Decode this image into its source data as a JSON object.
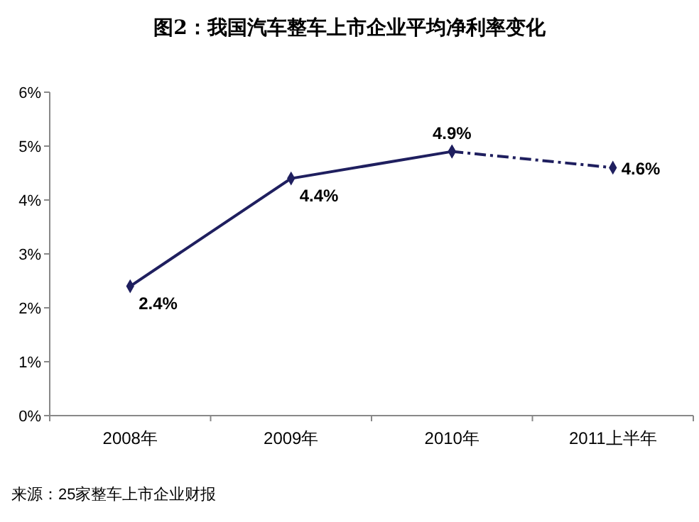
{
  "chart_data": {
    "type": "line",
    "title": "图2：我国汽车整车上市企业平均净利率变化",
    "categories": [
      "2008年",
      "2009年",
      "2010年",
      "2011上半年"
    ],
    "series": [
      {
        "color": "#1f1f5f",
        "values": [
          2.4,
          4.4,
          4.9,
          null
        ],
        "value_labels": [
          "2.4%",
          "4.4%",
          "4.9%",
          null
        ],
        "line_style": "solid"
      },
      {
        "color": "#1f1f5f",
        "values": [
          null,
          null,
          4.9,
          4.6
        ],
        "value_labels": [
          null,
          null,
          null,
          "4.6%"
        ],
        "line_style": "dashed"
      }
    ],
    "ylim": [
      0,
      6
    ],
    "yticks": [
      {
        "value": 0,
        "label": "0%"
      },
      {
        "value": 1,
        "label": "1%"
      },
      {
        "value": 2,
        "label": "2%"
      },
      {
        "value": 3,
        "label": "3%"
      },
      {
        "value": 4,
        "label": "4%"
      },
      {
        "value": 5,
        "label": "5%"
      },
      {
        "value": 6,
        "label": "6%"
      }
    ],
    "marker": "diamond",
    "grid": false,
    "annotations": [
      "来源：25家整车上市企业财报"
    ]
  }
}
